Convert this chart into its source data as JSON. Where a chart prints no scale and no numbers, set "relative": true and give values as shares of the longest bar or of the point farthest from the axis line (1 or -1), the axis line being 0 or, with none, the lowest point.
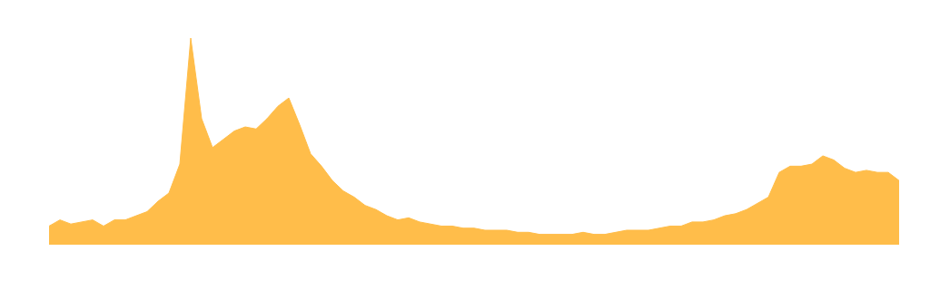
{
  "chart_data": {
    "type": "area",
    "relative": true,
    "color": "#ffbd4a",
    "categories": [
      null,
      null,
      null,
      null,
      null,
      null,
      null,
      null,
      null,
      null,
      null,
      null,
      null,
      null,
      null,
      null,
      null,
      null,
      null,
      null,
      null,
      null,
      null,
      null,
      null,
      null,
      null,
      null,
      null,
      null,
      null,
      null,
      null,
      null,
      null,
      null,
      null,
      null,
      null,
      null,
      null,
      null,
      null,
      null,
      null,
      null,
      null,
      null,
      null,
      null,
      null,
      null,
      null,
      null,
      null,
      null,
      null,
      null,
      null,
      null,
      null,
      null,
      null,
      null,
      null,
      null,
      null,
      null,
      null,
      null,
      null,
      null,
      null,
      null,
      null,
      null,
      null,
      null,
      null
    ],
    "values": [
      0.09,
      0.12,
      0.1,
      0.11,
      0.12,
      0.09,
      0.12,
      0.12,
      0.14,
      0.16,
      0.21,
      0.25,
      0.39,
      1,
      0.61,
      0.47,
      0.51,
      0.55,
      0.57,
      0.56,
      0.61,
      0.67,
      0.71,
      0.58,
      0.44,
      0.38,
      0.31,
      0.26,
      0.23,
      0.19,
      0.17,
      0.14,
      0.12,
      0.13,
      0.11,
      0.1,
      0.09,
      0.09,
      0.08,
      0.08,
      0.07,
      0.07,
      0.07,
      0.06,
      0.06,
      0.05,
      0.05,
      0.05,
      0.05,
      0.06,
      0.05,
      0.05,
      0.06,
      0.07,
      0.07,
      0.07,
      0.08,
      0.09,
      0.09,
      0.11,
      0.11,
      0.12,
      0.14,
      0.15,
      0.17,
      0.2,
      0.23,
      0.35,
      0.38,
      0.38,
      0.39,
      0.43,
      0.41,
      0.37,
      0.35,
      0.36,
      0.35,
      0.35,
      0.31
    ]
  }
}
